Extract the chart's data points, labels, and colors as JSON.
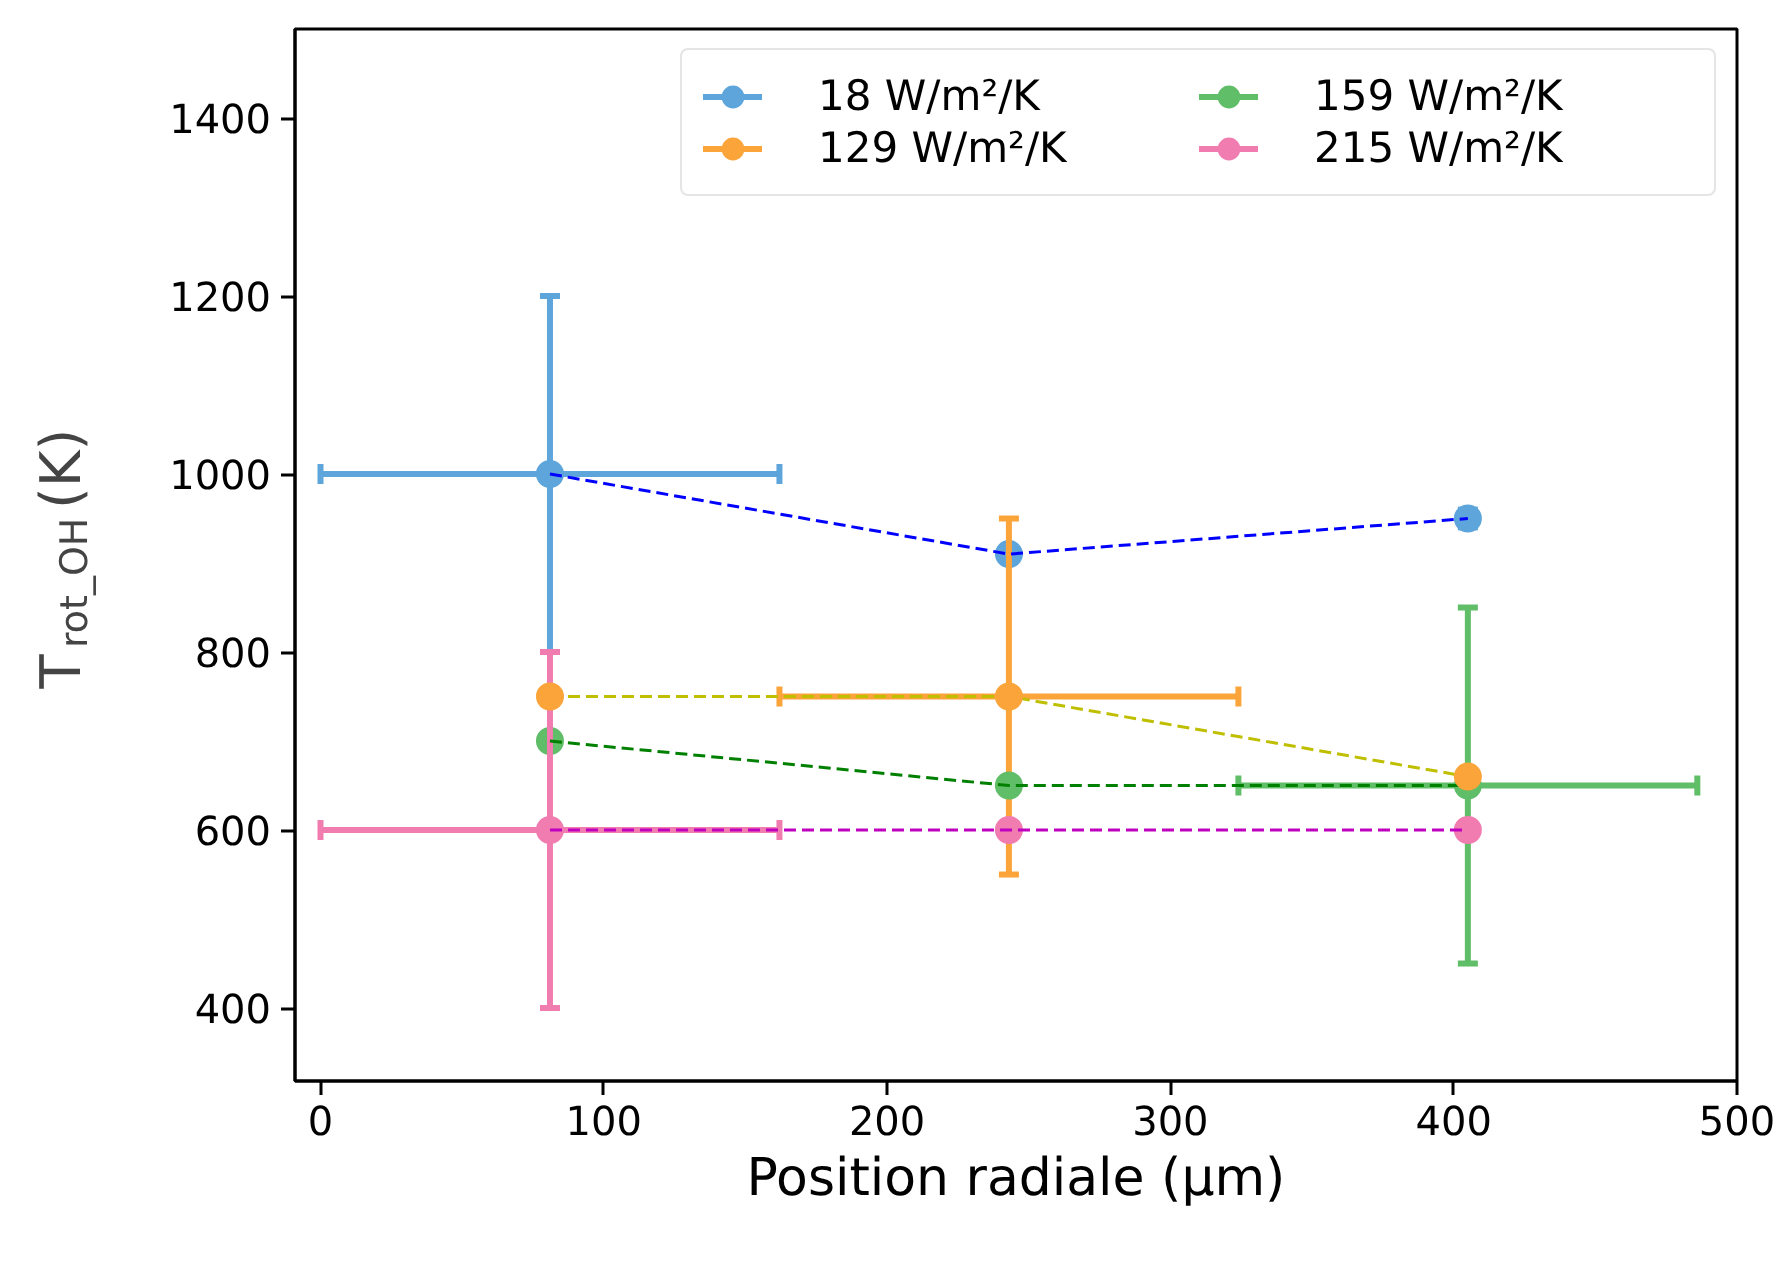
{
  "chart_data": {
    "type": "scatter",
    "xlabel": "Position radiale (µm)",
    "ylabel": "T$_{rot_OH}$(K)",
    "xlim": [
      -9,
      500
    ],
    "ylim": [
      318,
      1500
    ],
    "xticks": [
      0,
      100,
      200,
      300,
      400,
      500
    ],
    "yticks": [
      400,
      600,
      800,
      1000,
      1200,
      1400
    ],
    "grid": false,
    "legend": "top right",
    "marker": "circle",
    "series": [
      {
        "name": "18 W/m²/K",
        "color": "#5da5da",
        "x": [
          81,
          243,
          405
        ],
        "values": [
          1000,
          910,
          950
        ],
        "errors": [
          200,
          null,
          10
        ],
        "xerrors": [
          81,
          null,
          null
        ]
      },
      {
        "name": "129 W/m²/K",
        "color": "#faa43a",
        "x": [
          81,
          243,
          405
        ],
        "values": [
          750,
          750,
          660
        ],
        "errors": [
          null,
          200,
          null
        ],
        "xerrors": [
          null,
          81,
          null
        ]
      },
      {
        "name": "159 W/m²/K",
        "color": "#60bd68",
        "x": [
          81,
          243,
          405
        ],
        "values": [
          700,
          650,
          650
        ],
        "errors": [
          null,
          null,
          200
        ],
        "xerrors": [
          null,
          null,
          81
        ]
      },
      {
        "name": "215 W/m²/K",
        "color": "#f17cb0",
        "x": [
          81,
          243,
          405
        ],
        "values": [
          600,
          600,
          600
        ],
        "errors": [
          200,
          null,
          null
        ],
        "xerrors": [
          81,
          null,
          null
        ]
      },
      {
        "type": "line",
        "line_style": "dashed",
        "marker": "none",
        "color": "#0000ff",
        "x": [
          81,
          243,
          405
        ],
        "values": [
          1000,
          910,
          950
        ]
      },
      {
        "type": "line",
        "line_style": "dashed",
        "marker": "none",
        "color": "#bfbf00",
        "x": [
          81,
          243,
          405
        ],
        "values": [
          750,
          750,
          660
        ]
      },
      {
        "type": "line",
        "line_style": "dashed",
        "marker": "none",
        "color": "#008000",
        "x": [
          81,
          243,
          405
        ],
        "values": [
          700,
          650,
          650
        ]
      },
      {
        "type": "line",
        "line_style": "dashed",
        "marker": "none",
        "color": "#bf00bf",
        "x": [
          81,
          243,
          405
        ],
        "values": [
          600,
          600,
          600
        ]
      }
    ]
  }
}
